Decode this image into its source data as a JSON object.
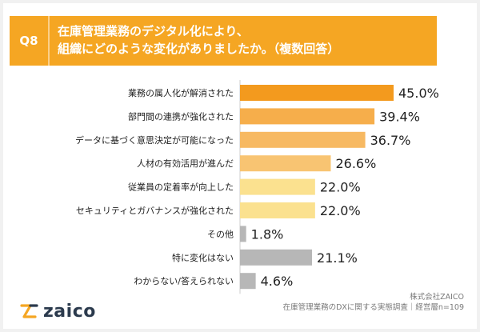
{
  "header": {
    "badge": "Q8",
    "question_line1": "在庫管理業務のデジタル化により、",
    "question_line2": "組織にどのような変化がありましたか。（複数回答）"
  },
  "chart_data": {
    "type": "bar",
    "orientation": "horizontal",
    "categories": [
      "業務の属人化が解消された",
      "部門間の連携が強化された",
      "データに基づく意思決定が可能になった",
      "人材の有効活用が進んだ",
      "従業員の定着率が向上した",
      "セキュリティとガバナンスが強化された",
      "その他",
      "特に変化はない",
      "わからない/答えられない"
    ],
    "values": [
      45.0,
      39.4,
      36.7,
      26.6,
      22.0,
      22.0,
      1.8,
      21.1,
      4.6
    ],
    "value_labels": [
      "45.0%",
      "39.4%",
      "36.7%",
      "26.6%",
      "22.0%",
      "22.0%",
      "1.8%",
      "21.1%",
      "4.6%"
    ],
    "bar_colors": [
      "#f39a1e",
      "#f6ae4b",
      "#f7b962",
      "#f8c472",
      "#fbe18f",
      "#fbe18f",
      "#b7b7b7",
      "#b7b7b7",
      "#b7b7b7"
    ],
    "xlim": [
      0,
      50
    ]
  },
  "brand": {
    "logo_text": "zaico",
    "logo_icon": "zaico-logo-icon"
  },
  "credits": {
    "company": "株式会社ZAICO",
    "survey": "在庫管理業務のDXに関する実態調査｜経営層n=109"
  },
  "colors": {
    "header_bg": "#f5a623",
    "label_text": "#222222",
    "value_text": "#222222"
  }
}
